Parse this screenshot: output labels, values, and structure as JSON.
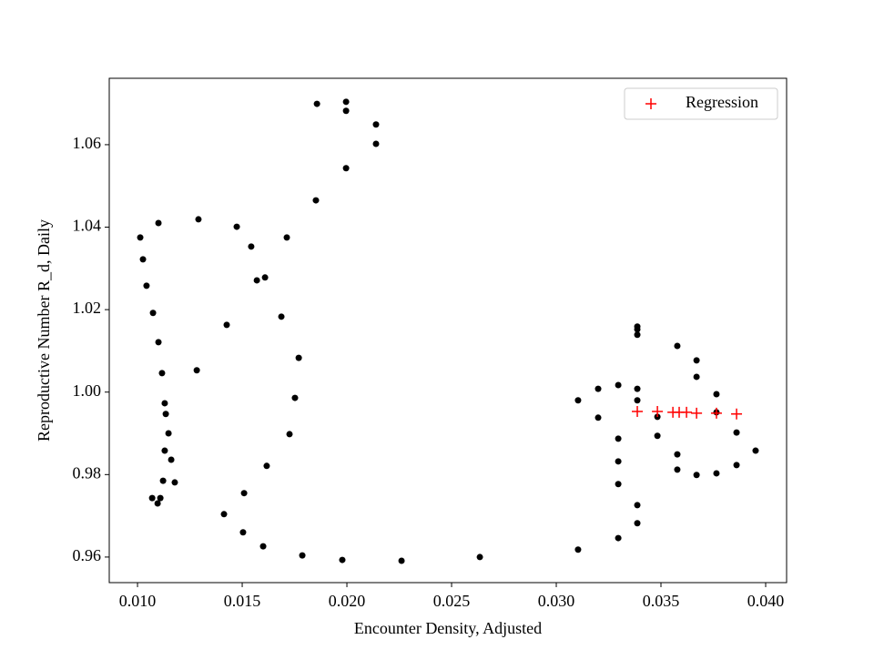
{
  "chart_data": {
    "type": "scatter",
    "x_label": "Encounter Density, Adjusted",
    "y_label": "Reproductive Number R_d, Daily",
    "xlim": [
      0.00865,
      0.041
    ],
    "ylim": [
      0.9538,
      1.0761
    ],
    "xticks": [
      {
        "value": 0.01,
        "label": "0.010"
      },
      {
        "value": 0.015,
        "label": "0.015"
      },
      {
        "value": 0.02,
        "label": "0.020"
      },
      {
        "value": 0.025,
        "label": "0.025"
      },
      {
        "value": 0.03,
        "label": "0.030"
      },
      {
        "value": 0.035,
        "label": "0.035"
      },
      {
        "value": 0.04,
        "label": "0.040"
      }
    ],
    "yticks": [
      0.96,
      0.98,
      {
        "value": 1.0,
        "label": "1.00"
      },
      1.02,
      1.04,
      1.06
    ],
    "grid": false,
    "legend": "upper right",
    "series": [
      {
        "color": "#000000",
        "marker": "o",
        "x": [
          0.01857,
          0.01996,
          0.01996,
          0.02139,
          0.02139,
          0.01996,
          0.01852,
          0.011,
          0.01291,
          0.01474,
          0.01013,
          0.01026,
          0.01543,
          0.01713,
          0.01043,
          0.01609,
          0.0157,
          0.01074,
          0.01687,
          0.01426,
          0.011,
          0.0177,
          0.01117,
          0.01283,
          0.01752,
          0.0113,
          0.01135,
          0.01148,
          0.01726,
          0.0113,
          0.01161,
          0.01617,
          0.01122,
          0.01178,
          0.0107,
          0.01109,
          0.01096,
          0.01509,
          0.01413,
          0.01504,
          0.016,
          0.01787,
          0.01978,
          0.02261,
          0.02635,
          0.03104,
          0.03296,
          0.03387,
          0.03387,
          0.03296,
          0.03296,
          0.03296,
          0.032,
          0.03104,
          0.032,
          0.03296,
          0.03387,
          0.03387,
          0.03387,
          0.03387,
          0.03387,
          0.03578,
          0.0367,
          0.0367,
          0.03765,
          0.03765,
          0.03483,
          0.03483,
          0.03861,
          0.03952,
          0.03578,
          0.03578,
          0.0367,
          0.03765,
          0.03861
        ],
        "values": [
          1.0699,
          1.0704,
          1.0682,
          1.0649,
          1.0602,
          1.0543,
          1.0465,
          1.041,
          1.0419,
          1.0401,
          1.0375,
          1.0322,
          1.0353,
          1.0375,
          1.0258,
          1.0278,
          1.0271,
          1.0192,
          1.0183,
          1.0163,
          1.0121,
          1.0083,
          1.0046,
          1.0053,
          0.9986,
          0.9973,
          0.9947,
          0.99,
          0.9898,
          0.9858,
          0.9836,
          0.9821,
          0.9785,
          0.9781,
          0.9743,
          0.9743,
          0.973,
          0.9755,
          0.9704,
          0.966,
          0.9626,
          0.9604,
          0.9593,
          0.9591,
          0.96,
          0.9618,
          0.9646,
          0.9682,
          0.9726,
          0.9777,
          0.9832,
          0.9887,
          0.9938,
          0.998,
          1.0008,
          1.0017,
          1.0008,
          0.998,
          1.0159,
          1.0152,
          1.0139,
          1.0112,
          1.0077,
          1.0037,
          0.9995,
          0.9951,
          0.994,
          0.9894,
          0.9902,
          0.9858,
          0.9849,
          0.9812,
          0.9799,
          0.9803,
          0.9823
        ]
      },
      {
        "name": "Regression",
        "color": "#ff0000",
        "marker": "+",
        "x": [
          0.03387,
          0.03483,
          0.03557,
          0.03587,
          0.03622,
          0.0367,
          0.03765,
          0.03861
        ],
        "values": [
          0.9953,
          0.9953,
          0.9951,
          0.9951,
          0.9951,
          0.9949,
          0.9949,
          0.9947
        ]
      }
    ]
  }
}
